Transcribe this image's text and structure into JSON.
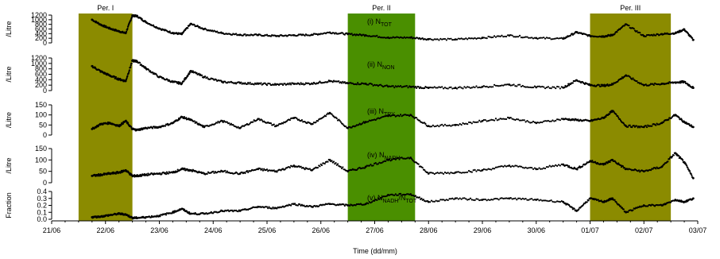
{
  "chart_data": {
    "type": "scatter",
    "xlabel": "Time (dd/mm)",
    "x_ticks": [
      "21/06",
      "22/06",
      "23/06",
      "24/06",
      "25/06",
      "26/06",
      "27/06",
      "28/06",
      "29/06",
      "30/06",
      "01/07",
      "02/07",
      "03/07"
    ],
    "xlim": [
      "21/06",
      "03/07"
    ],
    "periods": [
      {
        "name": "Per. I",
        "start": "21/06 12:00",
        "end": "22/06 12:00",
        "color": "#8b8b00"
      },
      {
        "name": "Per. II",
        "start": "26/06 12:00",
        "end": "27/06 18:00",
        "color": "#4a8f00"
      },
      {
        "name": "Per. III",
        "start": "01/07 00:00",
        "end": "02/07 12:00",
        "color": "#8b8b00"
      }
    ],
    "panels": [
      {
        "label": "(i) N",
        "sub": "TOT",
        "extra": "",
        "extra_sub": "",
        "ylabel": "/Litre",
        "ylim": [
          0,
          1200
        ],
        "yticks": [
          "0",
          "200",
          "400",
          "600",
          "800",
          "1000",
          "1200"
        ],
        "x": [
          "21/06 18:00",
          "21/06 22:00",
          "22/06 02:00",
          "22/06 06:00",
          "22/06 09:00",
          "22/06 12:00",
          "22/06 14:00",
          "22/06 18:00",
          "23/06 00:00",
          "23/06 06:00",
          "23/06 10:00",
          "23/06 14:00",
          "23/06 20:00",
          "24/06 04:00",
          "24/06 12:00",
          "24/06 20:00",
          "25/06 04:00",
          "25/06 12:00",
          "25/06 20:00",
          "26/06 04:00",
          "26/06 12:00",
          "26/06 20:00",
          "27/06 06:00",
          "27/06 16:00",
          "28/06 00:00",
          "28/06 12:00",
          "29/06 00:00",
          "29/06 12:00",
          "30/06 00:00",
          "30/06 12:00",
          "30/06 18:00",
          "01/07 00:00",
          "01/07 06:00",
          "01/07 10:00",
          "01/07 16:00",
          "02/07 00:00",
          "02/07 08:00",
          "02/07 14:00",
          "02/07 18:00",
          "02/07 22:00"
        ],
        "y": [
          1000,
          780,
          620,
          500,
          420,
          1180,
          1160,
          900,
          620,
          430,
          380,
          820,
          600,
          420,
          350,
          340,
          300,
          330,
          350,
          450,
          380,
          330,
          230,
          230,
          160,
          150,
          220,
          320,
          210,
          180,
          460,
          300,
          280,
          340,
          800,
          300,
          380,
          420,
          580,
          130
        ]
      },
      {
        "label": "(ii) N",
        "sub": "NON",
        "extra": "",
        "extra_sub": "",
        "ylabel": "/Litre",
        "ylim": [
          0,
          1200
        ],
        "yticks": [
          "0",
          "200",
          "400",
          "600",
          "800",
          "1000",
          "1200"
        ],
        "x": [
          "21/06 18:00",
          "21/06 22:00",
          "22/06 02:00",
          "22/06 06:00",
          "22/06 09:00",
          "22/06 12:00",
          "22/06 14:00",
          "22/06 18:00",
          "23/06 00:00",
          "23/06 06:00",
          "23/06 10:00",
          "23/06 14:00",
          "23/06 20:00",
          "24/06 04:00",
          "24/06 12:00",
          "24/06 20:00",
          "25/06 04:00",
          "25/06 12:00",
          "25/06 20:00",
          "26/06 04:00",
          "26/06 12:00",
          "26/06 20:00",
          "27/06 06:00",
          "27/06 16:00",
          "28/06 00:00",
          "28/06 12:00",
          "29/06 00:00",
          "29/06 12:00",
          "30/06 00:00",
          "30/06 12:00",
          "30/06 18:00",
          "01/07 00:00",
          "01/07 06:00",
          "01/07 10:00",
          "01/07 16:00",
          "02/07 00:00",
          "02/07 08:00",
          "02/07 14:00",
          "02/07 18:00",
          "02/07 22:00"
        ],
        "y": [
          900,
          700,
          550,
          420,
          350,
          1100,
          1080,
          820,
          500,
          320,
          260,
          720,
          500,
          320,
          280,
          250,
          220,
          250,
          260,
          350,
          270,
          250,
          150,
          140,
          100,
          100,
          140,
          220,
          120,
          110,
          380,
          200,
          180,
          230,
          560,
          200,
          250,
          300,
          320,
          100
        ]
      },
      {
        "label": "(iii) N",
        "sub": "TRY",
        "extra": "",
        "extra_sub": "",
        "ylabel": "/Litre",
        "ylim": [
          0,
          150
        ],
        "yticks": [
          "0",
          "50",
          "100",
          "150"
        ],
        "x": [
          "21/06 18:00",
          "21/06 22:00",
          "22/06 02:00",
          "22/06 06:00",
          "22/06 09:00",
          "22/06 12:00",
          "22/06 14:00",
          "22/06 18:00",
          "23/06 00:00",
          "23/06 06:00",
          "23/06 10:00",
          "23/06 14:00",
          "23/06 20:00",
          "24/06 04:00",
          "24/06 12:00",
          "24/06 20:00",
          "25/06 04:00",
          "25/06 12:00",
          "25/06 20:00",
          "26/06 04:00",
          "26/06 12:00",
          "26/06 20:00",
          "27/06 06:00",
          "27/06 16:00",
          "28/06 00:00",
          "28/06 12:00",
          "29/06 00:00",
          "29/06 12:00",
          "30/06 00:00",
          "30/06 12:00",
          "30/06 18:00",
          "01/07 00:00",
          "01/07 06:00",
          "01/07 10:00",
          "01/07 16:00",
          "02/07 00:00",
          "02/07 08:00",
          "02/07 14:00",
          "02/07 18:00",
          "02/07 22:00"
        ],
        "y": [
          30,
          55,
          60,
          45,
          70,
          30,
          25,
          35,
          40,
          60,
          90,
          75,
          40,
          70,
          35,
          80,
          45,
          85,
          55,
          110,
          35,
          65,
          95,
          100,
          45,
          50,
          70,
          85,
          60,
          80,
          75,
          70,
          85,
          120,
          45,
          40,
          60,
          100,
          65,
          40
        ]
      },
      {
        "label": "(iv) N",
        "sub": "NADH",
        "extra": "",
        "extra_sub": "",
        "ylabel": "/Litre",
        "ylim": [
          0,
          150
        ],
        "yticks": [
          "0",
          "50",
          "100",
          "150"
        ],
        "x": [
          "21/06 18:00",
          "21/06 22:00",
          "22/06 02:00",
          "22/06 06:00",
          "22/06 09:00",
          "22/06 12:00",
          "22/06 14:00",
          "22/06 18:00",
          "23/06 00:00",
          "23/06 06:00",
          "23/06 10:00",
          "23/06 14:00",
          "23/06 20:00",
          "24/06 04:00",
          "24/06 12:00",
          "24/06 20:00",
          "25/06 04:00",
          "25/06 12:00",
          "25/06 20:00",
          "26/06 04:00",
          "26/06 12:00",
          "26/06 20:00",
          "27/06 06:00",
          "27/06 16:00",
          "28/06 00:00",
          "28/06 12:00",
          "29/06 00:00",
          "29/06 12:00",
          "30/06 00:00",
          "30/06 12:00",
          "30/06 18:00",
          "01/07 00:00",
          "01/07 06:00",
          "01/07 10:00",
          "01/07 16:00",
          "02/07 00:00",
          "02/07 08:00",
          "02/07 14:00",
          "02/07 18:00",
          "02/07 22:00"
        ],
        "y": [
          30,
          35,
          40,
          45,
          55,
          30,
          30,
          35,
          40,
          45,
          60,
          55,
          40,
          50,
          40,
          60,
          50,
          75,
          55,
          100,
          50,
          70,
          100,
          110,
          40,
          45,
          55,
          75,
          60,
          80,
          60,
          95,
          80,
          100,
          60,
          50,
          70,
          130,
          90,
          20
        ]
      },
      {
        "label": "(v) N",
        "sub": "NADH",
        "extra": "/N",
        "extra_sub": "TOT",
        "ylabel": "Fraction",
        "ylim": [
          0,
          0.4
        ],
        "yticks": [
          "0.0",
          "0.1",
          "0.2",
          "0.3",
          "0.4"
        ],
        "x": [
          "21/06 18:00",
          "21/06 22:00",
          "22/06 02:00",
          "22/06 06:00",
          "22/06 09:00",
          "22/06 12:00",
          "22/06 14:00",
          "22/06 18:00",
          "23/06 00:00",
          "23/06 06:00",
          "23/06 10:00",
          "23/06 14:00",
          "23/06 20:00",
          "24/06 04:00",
          "24/06 12:00",
          "24/06 20:00",
          "25/06 04:00",
          "25/06 12:00",
          "25/06 20:00",
          "26/06 04:00",
          "26/06 12:00",
          "26/06 20:00",
          "27/06 06:00",
          "27/06 16:00",
          "28/06 00:00",
          "28/06 12:00",
          "29/06 00:00",
          "29/06 12:00",
          "30/06 00:00",
          "30/06 12:00",
          "30/06 18:00",
          "01/07 00:00",
          "01/07 06:00",
          "01/07 10:00",
          "01/07 16:00",
          "02/07 00:00",
          "02/07 08:00",
          "02/07 14:00",
          "02/07 18:00",
          "02/07 22:00"
        ],
        "y": [
          0.03,
          0.04,
          0.06,
          0.08,
          0.07,
          0.02,
          0.02,
          0.03,
          0.05,
          0.1,
          0.15,
          0.08,
          0.08,
          0.12,
          0.12,
          0.18,
          0.16,
          0.22,
          0.18,
          0.22,
          0.2,
          0.22,
          0.35,
          0.36,
          0.25,
          0.3,
          0.28,
          0.3,
          0.28,
          0.25,
          0.12,
          0.3,
          0.25,
          0.3,
          0.1,
          0.2,
          0.2,
          0.28,
          0.25,
          0.3
        ]
      }
    ]
  }
}
